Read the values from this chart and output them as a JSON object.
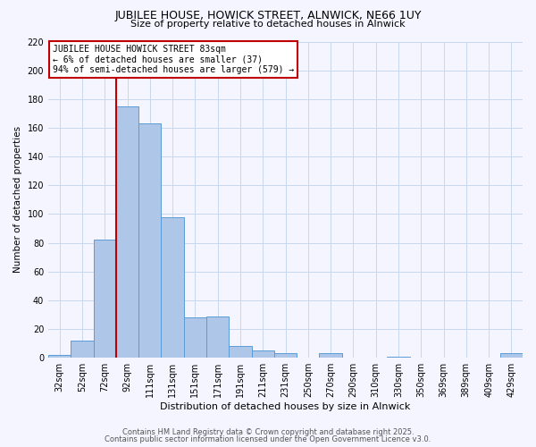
{
  "title": "JUBILEE HOUSE, HOWICK STREET, ALNWICK, NE66 1UY",
  "subtitle": "Size of property relative to detached houses in Alnwick",
  "xlabel": "Distribution of detached houses by size in Alnwick",
  "ylabel": "Number of detached properties",
  "categories": [
    "32sqm",
    "52sqm",
    "72sqm",
    "92sqm",
    "111sqm",
    "131sqm",
    "151sqm",
    "171sqm",
    "191sqm",
    "211sqm",
    "231sqm",
    "250sqm",
    "270sqm",
    "290sqm",
    "310sqm",
    "330sqm",
    "350sqm",
    "369sqm",
    "389sqm",
    "409sqm",
    "429sqm"
  ],
  "values": [
    2,
    12,
    82,
    175,
    163,
    98,
    28,
    29,
    8,
    5,
    3,
    0,
    3,
    0,
    0,
    1,
    0,
    0,
    0,
    0,
    3
  ],
  "bar_color": "#aec6e8",
  "bar_edge_color": "#5b9bd5",
  "vline_x_index": 3,
  "vline_color": "#c00000",
  "annotation_title": "JUBILEE HOUSE HOWICK STREET 83sqm",
  "annotation_line1": "← 6% of detached houses are smaller (37)",
  "annotation_line2": "94% of semi-detached houses are larger (579) →",
  "annotation_box_color": "#ffffff",
  "annotation_box_edge_color": "#c00000",
  "ylim": [
    0,
    220
  ],
  "yticks": [
    0,
    20,
    40,
    60,
    80,
    100,
    120,
    140,
    160,
    180,
    200,
    220
  ],
  "footnote1": "Contains HM Land Registry data © Crown copyright and database right 2025.",
  "footnote2": "Contains public sector information licensed under the Open Government Licence v3.0.",
  "background_color": "#f5f5ff",
  "grid_color": "#c8d8ec",
  "title_fontsize": 9,
  "subtitle_fontsize": 8,
  "xlabel_fontsize": 8,
  "ylabel_fontsize": 7.5,
  "tick_fontsize": 7,
  "footnote_fontsize": 6
}
